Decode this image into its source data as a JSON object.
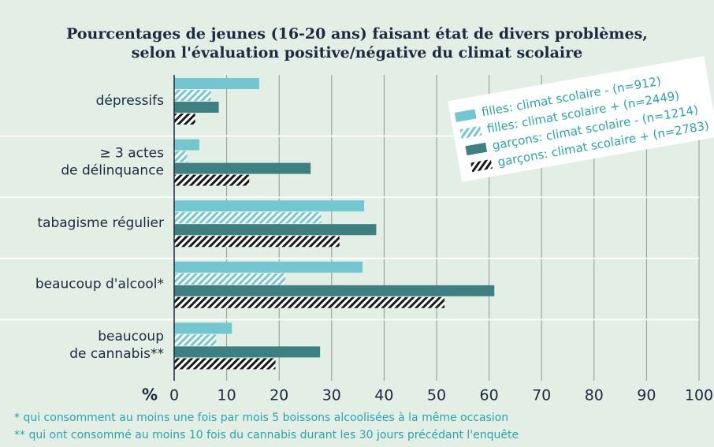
{
  "chart_data": {
    "type": "barh",
    "title": [
      "Pourcentages de jeunes (16-20 ans) faisant état de divers problèmes,",
      "selon l'évaluation positive/négative du climat scolaire"
    ],
    "categories": [
      [
        "dépressifs"
      ],
      [
        "≥ 3 actes",
        "de délinquance"
      ],
      [
        "tabagisme régulier"
      ],
      [
        "beaucoup d'alcool*"
      ],
      [
        "beaucoup",
        "de cannabis**"
      ]
    ],
    "series": [
      {
        "name": "filles: climat scolaire - (n=912)",
        "color": "#72c7d0",
        "pattern": "solid",
        "values": [
          16.2,
          4.8,
          36.2,
          35.9,
          11
        ]
      },
      {
        "name": "filles: climat scolaire + (n=2449)",
        "color": "#72c7d0",
        "pattern": "hatch",
        "values": [
          7,
          2.5,
          28,
          21.2,
          8
        ]
      },
      {
        "name": "garçons: climat scolaire - (n=1214)",
        "color": "#3e7f82",
        "pattern": "solid",
        "values": [
          8.5,
          26,
          38.5,
          61,
          27.8
        ]
      },
      {
        "name": "garçons: climat scolaire + (n=2783)",
        "color": "#1a1a1a",
        "pattern": "hatch",
        "values": [
          4,
          14.3,
          31.5,
          51.5,
          19.3
        ]
      }
    ],
    "xlabel": "%",
    "xlim": [
      0,
      100
    ],
    "xticks": [
      0,
      10,
      20,
      30,
      40,
      50,
      60,
      70,
      80,
      90,
      100
    ],
    "grid": true,
    "notes": [
      "* qui consomment au moins une fois par mois 5 boissons alcoolisées à la même occasion",
      "** qui ont consommé au moins 10 fois du cannabis durant les 30 jours précédant l'enquête"
    ]
  }
}
